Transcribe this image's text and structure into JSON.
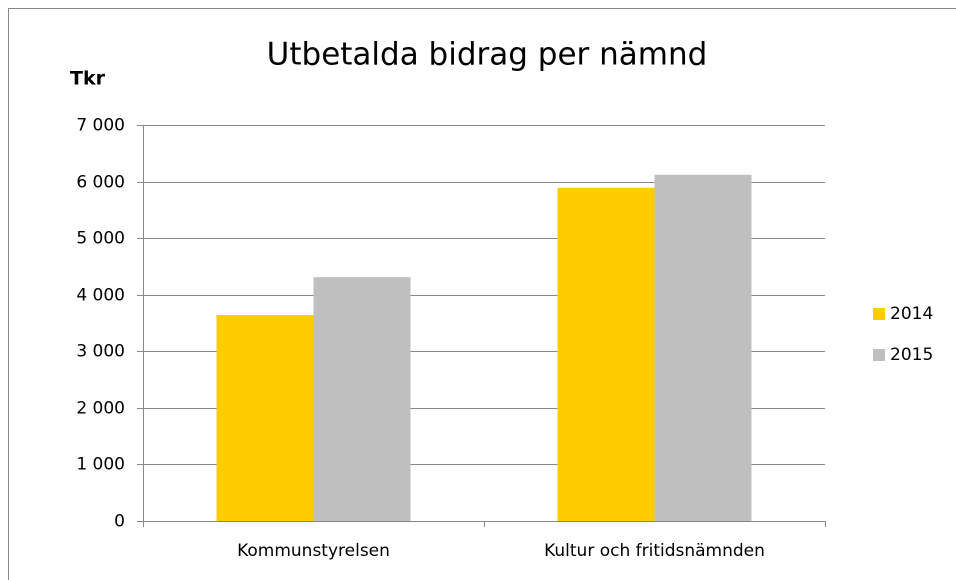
{
  "chart_data": {
    "type": "bar",
    "title": "Utbetalda bidrag per nämnd",
    "y_label": "Tkr",
    "categories": [
      "Kommunstyrelsen",
      "Kultur och fritidsnämnden"
    ],
    "series": [
      {
        "name": "2014",
        "color": "#ffcc00",
        "values": [
          3640,
          5890
        ]
      },
      {
        "name": "2015",
        "color": "#bfbfbf",
        "values": [
          4310,
          6120
        ]
      }
    ],
    "ylim": [
      0,
      7000
    ],
    "yticks": [
      0,
      {
        "value": 1000,
        "label": "1 000"
      },
      {
        "value": 2000,
        "label": "2 000"
      },
      {
        "value": 3000,
        "label": "3 000"
      },
      {
        "value": 4000,
        "label": "4 000"
      },
      {
        "value": 5000,
        "label": "5 000"
      },
      {
        "value": 6000,
        "label": "6 000"
      },
      {
        "value": 7000,
        "label": "7 000"
      }
    ],
    "grid": true,
    "legend": "right"
  }
}
